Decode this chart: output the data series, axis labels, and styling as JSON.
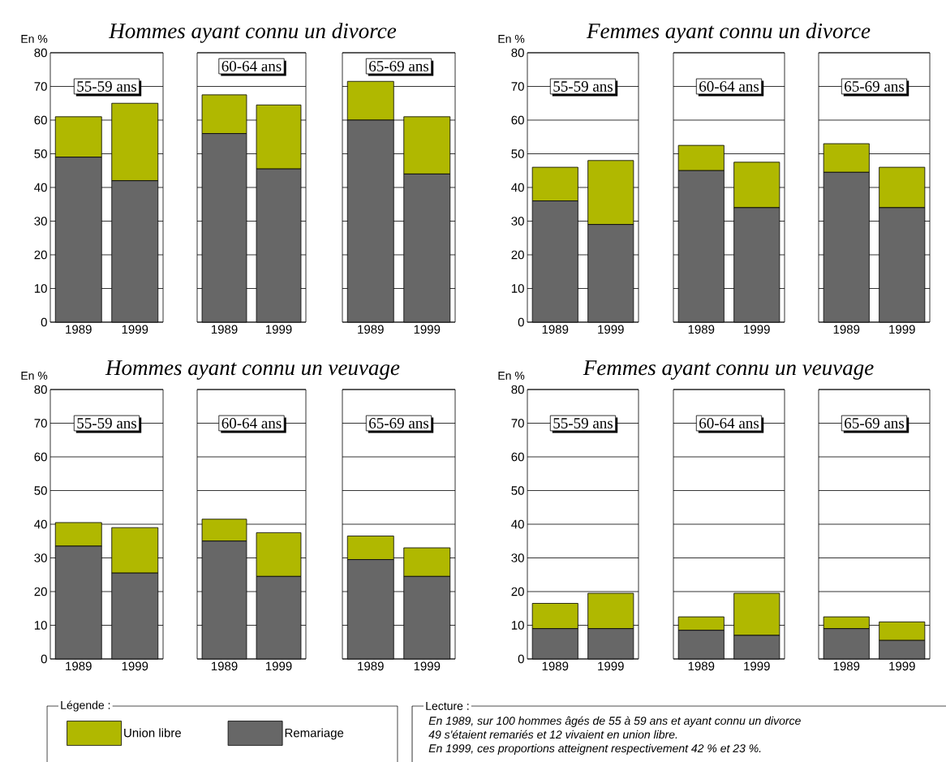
{
  "chart_data": [
    {
      "type": "bar",
      "stacked": true,
      "title": "Hommes ayant connu un divorce",
      "ylabel": "En %",
      "categories": [
        "1989",
        "1999"
      ],
      "series": [
        {
          "color": "#676767",
          "values": [
            49,
            42
          ]
        },
        {
          "color": "#b0b800",
          "values": [
            12,
            23
          ]
        }
      ],
      "ylim": [
        0,
        80
      ],
      "yticks": [
        0,
        10,
        20,
        30,
        40,
        50,
        60,
        70,
        80
      ],
      "grid": "y",
      "annotations": [
        "55-59 ans"
      ]
    },
    {
      "type": "bar",
      "stacked": true,
      "categories": [
        "1989",
        "1999"
      ],
      "series": [
        {
          "color": "#676767",
          "values": [
            56,
            45.5
          ]
        },
        {
          "color": "#b0b800",
          "values": [
            11.5,
            19
          ]
        }
      ],
      "ylim": [
        0,
        80
      ],
      "yticks": [
        0,
        10,
        20,
        30,
        40,
        50,
        60,
        70,
        80
      ],
      "grid": "y",
      "tick_labels": "x",
      "annotations": [
        "60-64 ans"
      ]
    },
    {
      "type": "bar",
      "stacked": true,
      "categories": [
        "1989",
        "1999"
      ],
      "series": [
        {
          "color": "#676767",
          "values": [
            60,
            44
          ]
        },
        {
          "color": "#b0b800",
          "values": [
            11.5,
            17
          ]
        }
      ],
      "ylim": [
        0,
        80
      ],
      "yticks": [
        0,
        10,
        20,
        30,
        40,
        50,
        60,
        70,
        80
      ],
      "grid": "y",
      "tick_labels": "x",
      "annotations": [
        "65-69 ans"
      ]
    },
    {
      "type": "bar",
      "stacked": true,
      "title": "Femmes ayant connu un divorce",
      "ylabel": "En %",
      "categories": [
        "1989",
        "1999"
      ],
      "series": [
        {
          "color": "#676767",
          "values": [
            36,
            29
          ]
        },
        {
          "color": "#b0b800",
          "values": [
            10,
            19
          ]
        }
      ],
      "ylim": [
        0,
        80
      ],
      "yticks": [
        0,
        10,
        20,
        30,
        40,
        50,
        60,
        70,
        80
      ],
      "grid": "y",
      "annotations": [
        "55-59 ans"
      ]
    },
    {
      "type": "bar",
      "stacked": true,
      "categories": [
        "1989",
        "1999"
      ],
      "series": [
        {
          "color": "#676767",
          "values": [
            45,
            34
          ]
        },
        {
          "color": "#b0b800",
          "values": [
            7.5,
            13.5
          ]
        }
      ],
      "ylim": [
        0,
        80
      ],
      "yticks": [
        0,
        10,
        20,
        30,
        40,
        50,
        60,
        70,
        80
      ],
      "grid": "y",
      "tick_labels": "x",
      "annotations": [
        "60-64 ans"
      ]
    },
    {
      "type": "bar",
      "stacked": true,
      "categories": [
        "1989",
        "1999"
      ],
      "series": [
        {
          "color": "#676767",
          "values": [
            44.5,
            34
          ]
        },
        {
          "color": "#b0b800",
          "values": [
            8.5,
            12
          ]
        }
      ],
      "ylim": [
        0,
        80
      ],
      "yticks": [
        0,
        10,
        20,
        30,
        40,
        50,
        60,
        70,
        80
      ],
      "grid": "y",
      "tick_labels": "x",
      "annotations": [
        "65-69 ans"
      ]
    },
    {
      "type": "bar",
      "stacked": true,
      "title": "Hommes ayant connu un veuvage",
      "ylabel": "En %",
      "categories": [
        "1989",
        "1999"
      ],
      "series": [
        {
          "name": "Remariage",
          "color": "#676767",
          "values": [
            33.5,
            25.5
          ]
        },
        {
          "name": "Union libre",
          "color": "#b0b800",
          "values": [
            7,
            13.5
          ]
        }
      ],
      "ylim": [
        0,
        80
      ],
      "yticks": [
        0,
        10,
        20,
        30,
        40,
        50,
        60,
        70,
        80
      ],
      "grid": "y",
      "legend": "bottom",
      "legend_title": "Légende :",
      "annotations": [
        "55-59 ans"
      ]
    },
    {
      "type": "bar",
      "stacked": true,
      "categories": [
        "1989",
        "1999"
      ],
      "series": [
        {
          "color": "#676767",
          "values": [
            35,
            24.5
          ]
        },
        {
          "color": "#b0b800",
          "values": [
            6.5,
            13
          ]
        }
      ],
      "ylim": [
        0,
        80
      ],
      "yticks": [
        0,
        10,
        20,
        30,
        40,
        50,
        60,
        70,
        80
      ],
      "grid": "y",
      "tick_labels": "x",
      "annotations": [
        "60-64 ans"
      ]
    },
    {
      "type": "bar",
      "stacked": true,
      "categories": [
        "1989",
        "1999"
      ],
      "series": [
        {
          "color": "#676767",
          "values": [
            29.5,
            24.5
          ]
        },
        {
          "color": "#b0b800",
          "values": [
            7,
            8.5
          ]
        }
      ],
      "ylim": [
        0,
        80
      ],
      "yticks": [
        0,
        10,
        20,
        30,
        40,
        50,
        60,
        70,
        80
      ],
      "grid": "y",
      "tick_labels": "x",
      "annotations": [
        "65-69 ans"
      ]
    },
    {
      "type": "bar",
      "stacked": true,
      "title": "Femmes ayant connu un veuvage",
      "ylabel": "En %",
      "categories": [
        "1989",
        "1999"
      ],
      "series": [
        {
          "color": "#676767",
          "values": [
            9,
            9
          ]
        },
        {
          "color": "#b0b800",
          "values": [
            7.5,
            10.5
          ]
        }
      ],
      "ylim": [
        0,
        80
      ],
      "yticks": [
        0,
        10,
        20,
        30,
        40,
        50,
        60,
        70,
        80
      ],
      "grid": "y",
      "annotations": [
        "55-59 ans",
        "Lecture :",
        "En 1989, sur 100 hommes âgés de 55 à 59 ans et ayant connu un divorce",
        "49 s'étaient remariés et 12 vivaient en union libre.",
        "En 1999, ces proportions atteignent respectivement 42 % et 23 %."
      ]
    },
    {
      "type": "bar",
      "stacked": true,
      "categories": [
        "1989",
        "1999"
      ],
      "series": [
        {
          "color": "#676767",
          "values": [
            8.5,
            7
          ]
        },
        {
          "color": "#b0b800",
          "values": [
            4,
            12.5
          ]
        }
      ],
      "ylim": [
        0,
        80
      ],
      "yticks": [
        0,
        10,
        20,
        30,
        40,
        50,
        60,
        70,
        80
      ],
      "grid": "y",
      "tick_labels": "x",
      "annotations": [
        "60-64 ans"
      ]
    },
    {
      "type": "bar",
      "stacked": true,
      "categories": [
        "1989",
        "1999"
      ],
      "series": [
        {
          "color": "#676767",
          "values": [
            9,
            5.5
          ]
        },
        {
          "color": "#b0b800",
          "values": [
            3.5,
            5.5
          ]
        }
      ],
      "ylim": [
        0,
        80
      ],
      "yticks": [
        0,
        10,
        20,
        30,
        40,
        50,
        60,
        70,
        80
      ],
      "grid": "y",
      "tick_labels": "x",
      "annotations": [
        "65-69 ans"
      ]
    }
  ]
}
